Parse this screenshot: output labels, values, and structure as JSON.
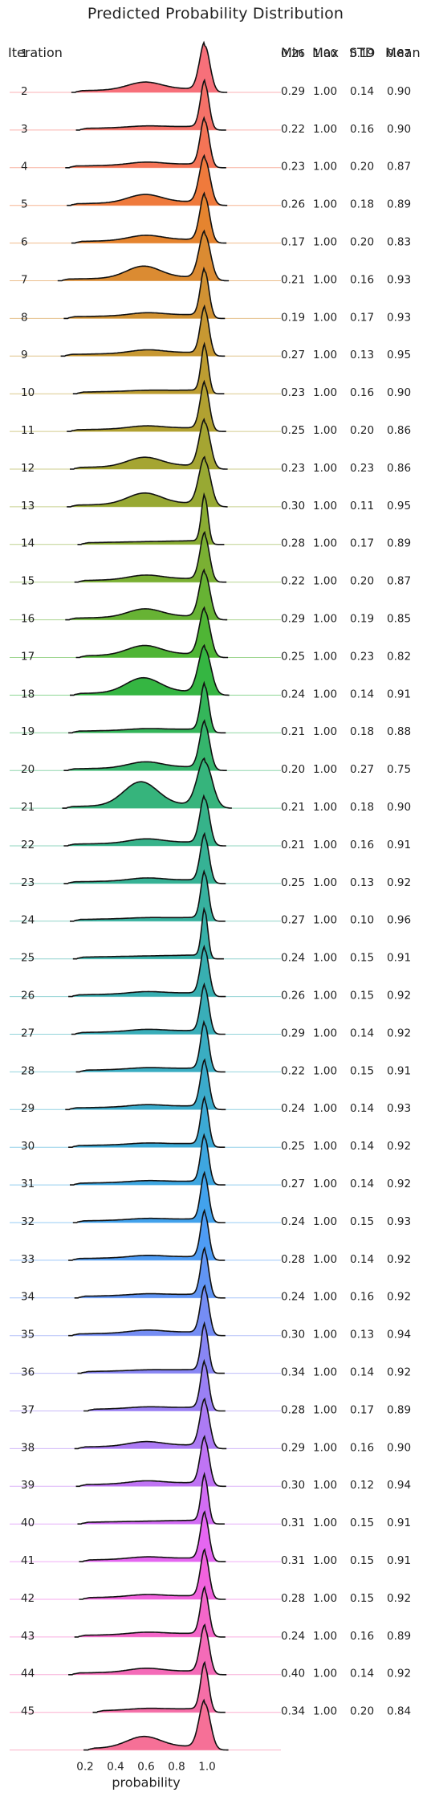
{
  "title": "Predicted Probability Distribution",
  "columns": {
    "iteration": "Iteration",
    "min": "Min",
    "max": "Max",
    "std": "STD",
    "mean": "Mean"
  },
  "chart_data": {
    "type": "ridgeline",
    "title": "Predicted Probability Distribution",
    "xlabel": "probability",
    "ylabel": "",
    "xticks": [
      "0.2",
      "0.4",
      "0.6",
      "0.8",
      "1.0"
    ],
    "xlim": [
      0.0,
      1.22
    ],
    "grid": false,
    "legend": "none",
    "rows": [
      {
        "iteration": "1",
        "min": "0.26",
        "max": "1.00",
        "std": "0.19",
        "mean": "0.87",
        "color": "#f7707a"
      },
      {
        "iteration": "2",
        "min": "0.29",
        "max": "1.00",
        "std": "0.14",
        "mean": "0.90",
        "color": "#f57168"
      },
      {
        "iteration": "3",
        "min": "0.22",
        "max": "1.00",
        "std": "0.16",
        "mean": "0.90",
        "color": "#f47456"
      },
      {
        "iteration": "4",
        "min": "0.23",
        "max": "1.00",
        "std": "0.20",
        "mean": "0.87",
        "color": "#ef7a3c"
      },
      {
        "iteration": "5",
        "min": "0.26",
        "max": "1.00",
        "std": "0.18",
        "mean": "0.89",
        "color": "#e5842f"
      },
      {
        "iteration": "6",
        "min": "0.17",
        "max": "1.00",
        "std": "0.20",
        "mean": "0.83",
        "color": "#db8b32"
      },
      {
        "iteration": "7",
        "min": "0.21",
        "max": "1.00",
        "std": "0.16",
        "mean": "0.93",
        "color": "#d19233"
      },
      {
        "iteration": "8",
        "min": "0.19",
        "max": "1.00",
        "std": "0.17",
        "mean": "0.93",
        "color": "#c79832"
      },
      {
        "iteration": "9",
        "min": "0.27",
        "max": "1.00",
        "std": "0.13",
        "mean": "0.95",
        "color": "#bd9d31"
      },
      {
        "iteration": "10",
        "min": "0.23",
        "max": "1.00",
        "std": "0.16",
        "mean": "0.90",
        "color": "#b1a131"
      },
      {
        "iteration": "11",
        "min": "0.25",
        "max": "1.00",
        "std": "0.20",
        "mean": "0.86",
        "color": "#a5a532"
      },
      {
        "iteration": "12",
        "min": "0.23",
        "max": "1.00",
        "std": "0.23",
        "mean": "0.86",
        "color": "#98a933"
      },
      {
        "iteration": "13",
        "min": "0.30",
        "max": "1.00",
        "std": "0.11",
        "mean": "0.95",
        "color": "#8aad33"
      },
      {
        "iteration": "14",
        "min": "0.28",
        "max": "1.00",
        "std": "0.17",
        "mean": "0.89",
        "color": "#7ab033"
      },
      {
        "iteration": "15",
        "min": "0.22",
        "max": "1.00",
        "std": "0.20",
        "mean": "0.87",
        "color": "#67b334"
      },
      {
        "iteration": "16",
        "min": "0.29",
        "max": "1.00",
        "std": "0.19",
        "mean": "0.85",
        "color": "#4fb535"
      },
      {
        "iteration": "17",
        "min": "0.25",
        "max": "1.00",
        "std": "0.23",
        "mean": "0.82",
        "color": "#35b642"
      },
      {
        "iteration": "18",
        "min": "0.24",
        "max": "1.00",
        "std": "0.14",
        "mean": "0.91",
        "color": "#34b65a"
      },
      {
        "iteration": "19",
        "min": "0.21",
        "max": "1.00",
        "std": "0.18",
        "mean": "0.88",
        "color": "#35b56c"
      },
      {
        "iteration": "20",
        "min": "0.20",
        "max": "1.00",
        "std": "0.27",
        "mean": "0.75",
        "color": "#36b47c"
      },
      {
        "iteration": "21",
        "min": "0.21",
        "max": "1.00",
        "std": "0.18",
        "mean": "0.90",
        "color": "#36b38a"
      },
      {
        "iteration": "22",
        "min": "0.21",
        "max": "1.00",
        "std": "0.16",
        "mean": "0.91",
        "color": "#36b295"
      },
      {
        "iteration": "23",
        "min": "0.25",
        "max": "1.00",
        "std": "0.13",
        "mean": "0.92",
        "color": "#37b19f"
      },
      {
        "iteration": "24",
        "min": "0.27",
        "max": "1.00",
        "std": "0.10",
        "mean": "0.96",
        "color": "#38b0a8"
      },
      {
        "iteration": "25",
        "min": "0.24",
        "max": "1.00",
        "std": "0.15",
        "mean": "0.91",
        "color": "#38afb1"
      },
      {
        "iteration": "26",
        "min": "0.26",
        "max": "1.00",
        "std": "0.15",
        "mean": "0.92",
        "color": "#39aeb9"
      },
      {
        "iteration": "27",
        "min": "0.29",
        "max": "1.00",
        "std": "0.14",
        "mean": "0.92",
        "color": "#3aadc2"
      },
      {
        "iteration": "28",
        "min": "0.22",
        "max": "1.00",
        "std": "0.15",
        "mean": "0.91",
        "color": "#3babcb"
      },
      {
        "iteration": "29",
        "min": "0.24",
        "max": "1.00",
        "std": "0.14",
        "mean": "0.93",
        "color": "#3ca9d5"
      },
      {
        "iteration": "30",
        "min": "0.25",
        "max": "1.00",
        "std": "0.14",
        "mean": "0.92",
        "color": "#3ea6e0"
      },
      {
        "iteration": "31",
        "min": "0.27",
        "max": "1.00",
        "std": "0.14",
        "mean": "0.92",
        "color": "#42a2ec"
      },
      {
        "iteration": "32",
        "min": "0.24",
        "max": "1.00",
        "std": "0.15",
        "mean": "0.93",
        "color": "#4e9cf4"
      },
      {
        "iteration": "33",
        "min": "0.28",
        "max": "1.00",
        "std": "0.14",
        "mean": "0.92",
        "color": "#6195f4"
      },
      {
        "iteration": "34",
        "min": "0.24",
        "max": "1.00",
        "std": "0.16",
        "mean": "0.92",
        "color": "#758df4"
      },
      {
        "iteration": "35",
        "min": "0.30",
        "max": "1.00",
        "std": "0.13",
        "mean": "0.94",
        "color": "#8886f4"
      },
      {
        "iteration": "36",
        "min": "0.34",
        "max": "1.00",
        "std": "0.14",
        "mean": "0.92",
        "color": "#9a80f4"
      },
      {
        "iteration": "37",
        "min": "0.28",
        "max": "1.00",
        "std": "0.17",
        "mean": "0.89",
        "color": "#ac7bf4"
      },
      {
        "iteration": "38",
        "min": "0.29",
        "max": "1.00",
        "std": "0.16",
        "mean": "0.90",
        "color": "#bf74f4"
      },
      {
        "iteration": "39",
        "min": "0.30",
        "max": "1.00",
        "std": "0.12",
        "mean": "0.94",
        "color": "#d26df4"
      },
      {
        "iteration": "40",
        "min": "0.31",
        "max": "1.00",
        "std": "0.15",
        "mean": "0.91",
        "color": "#e566f1"
      },
      {
        "iteration": "41",
        "min": "0.31",
        "max": "1.00",
        "std": "0.15",
        "mean": "0.91",
        "color": "#f163dd"
      },
      {
        "iteration": "42",
        "min": "0.28",
        "max": "1.00",
        "std": "0.15",
        "mean": "0.92",
        "color": "#f467c9"
      },
      {
        "iteration": "43",
        "min": "0.24",
        "max": "1.00",
        "std": "0.16",
        "mean": "0.89",
        "color": "#f46bb8"
      },
      {
        "iteration": "44",
        "min": "0.40",
        "max": "1.00",
        "std": "0.14",
        "mean": "0.92",
        "color": "#f56ea7"
      },
      {
        "iteration": "45",
        "min": "0.34",
        "max": "1.00",
        "std": "0.20",
        "mean": "0.84",
        "color": "#f67097"
      }
    ]
  }
}
